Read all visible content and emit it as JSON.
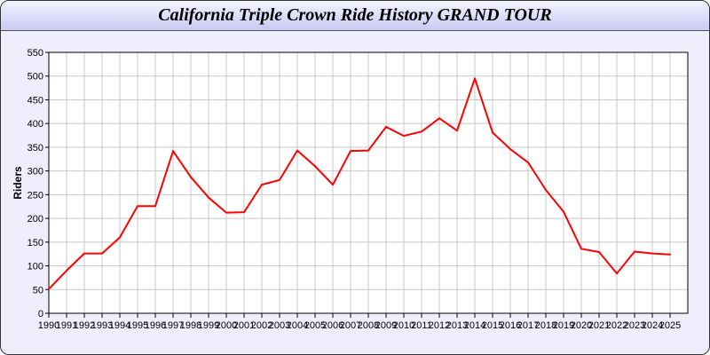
{
  "chart_data": {
    "type": "line",
    "title": "California Triple Crown Ride History GRAND TOUR",
    "xlabel": "",
    "ylabel": "Riders",
    "ylim": [
      0,
      550
    ],
    "yticks": [
      0,
      50,
      100,
      150,
      200,
      250,
      300,
      350,
      400,
      450,
      500,
      550
    ],
    "grid": true,
    "line_color": "#ff0000",
    "x": [
      1990,
      1991,
      1992,
      1993,
      1994,
      1995,
      1996,
      1997,
      1998,
      1999,
      2000,
      2001,
      2002,
      2003,
      2004,
      2005,
      2006,
      2007,
      2008,
      2009,
      2010,
      2011,
      2012,
      2013,
      2014,
      2015,
      2016,
      2017,
      2018,
      2019,
      2020,
      2021,
      2022,
      2023,
      2024,
      2025
    ],
    "values": [
      51,
      90,
      126,
      126,
      160,
      226,
      226,
      342,
      287,
      244,
      212,
      213,
      271,
      281,
      343,
      310,
      271,
      342,
      343,
      393,
      374,
      383,
      411,
      385,
      495,
      381,
      346,
      318,
      260,
      214,
      136,
      129,
      84,
      130,
      126,
      124
    ]
  }
}
